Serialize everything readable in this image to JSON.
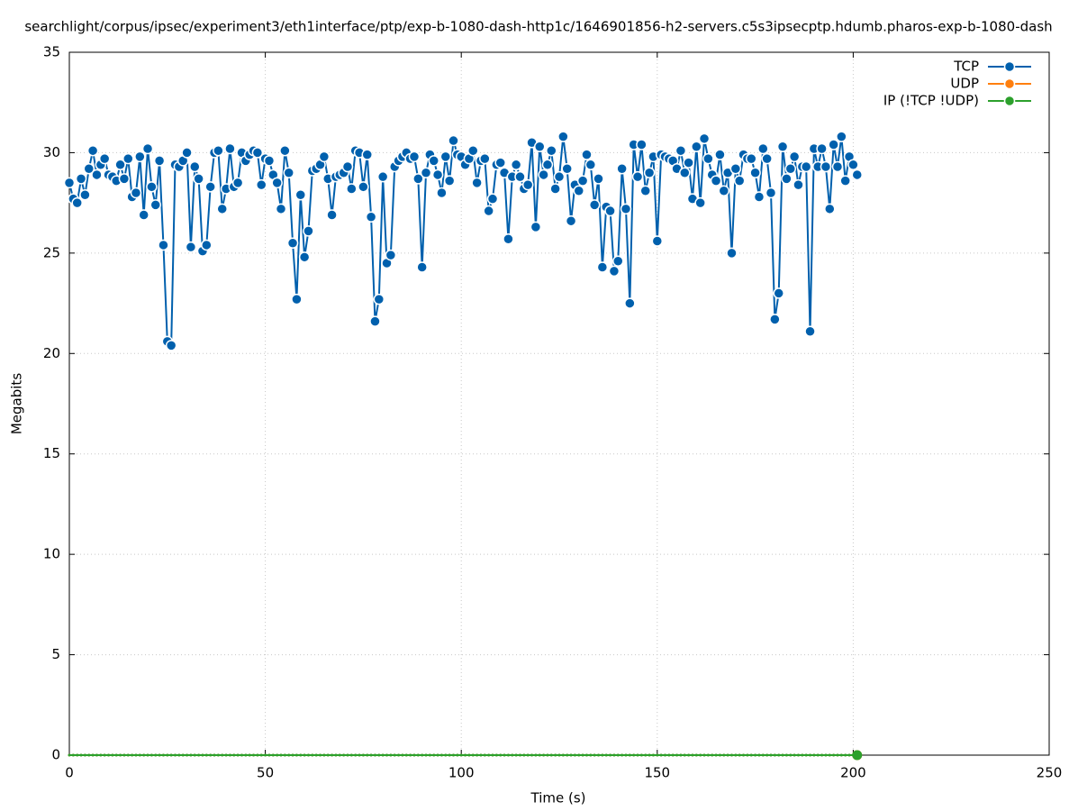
{
  "chart_data": {
    "type": "line",
    "title": "searchlight/corpus/ipsec/experiment3/eth1interface/ptp/exp-b-1080-dash-http1c/1646901856-h2-servers.c5s3ipsecptp.hdumb.pharos-exp-b-1080-dash",
    "x_label": "Time (s)",
    "y_label": "Megabits",
    "xlim": [
      0,
      250
    ],
    "xticks": [
      0,
      50,
      100,
      150,
      200,
      250
    ],
    "ylim": [
      0,
      35
    ],
    "yticks": [
      0,
      5,
      10,
      15,
      20,
      25,
      30,
      35
    ],
    "grid": true,
    "legend": "top-right",
    "x": [
      0,
      1,
      2,
      3,
      4,
      5,
      6,
      7,
      8,
      9,
      10,
      11,
      12,
      13,
      14,
      15,
      16,
      17,
      18,
      19,
      20,
      21,
      22,
      23,
      24,
      25,
      26,
      27,
      28,
      29,
      30,
      31,
      32,
      33,
      34,
      35,
      36,
      37,
      38,
      39,
      40,
      41,
      42,
      43,
      44,
      45,
      46,
      47,
      48,
      49,
      50,
      51,
      52,
      53,
      54,
      55,
      56,
      57,
      58,
      59,
      60,
      61,
      62,
      63,
      64,
      65,
      66,
      67,
      68,
      69,
      70,
      71,
      72,
      73,
      74,
      75,
      76,
      77,
      78,
      79,
      80,
      81,
      82,
      83,
      84,
      85,
      86,
      87,
      88,
      89,
      90,
      91,
      92,
      93,
      94,
      95,
      96,
      97,
      98,
      99,
      100,
      101,
      102,
      103,
      104,
      105,
      106,
      107,
      108,
      109,
      110,
      111,
      112,
      113,
      114,
      115,
      116,
      117,
      118,
      119,
      120,
      121,
      122,
      123,
      124,
      125,
      126,
      127,
      128,
      129,
      130,
      131,
      132,
      133,
      134,
      135,
      136,
      137,
      138,
      139,
      140,
      141,
      142,
      143,
      144,
      145,
      146,
      147,
      148,
      149,
      150,
      151,
      152,
      153,
      154,
      155,
      156,
      157,
      158,
      159,
      160,
      161,
      162,
      163,
      164,
      165,
      166,
      167,
      168,
      169,
      170,
      171,
      172,
      173,
      174,
      175,
      176,
      177,
      178,
      179,
      180,
      181,
      182,
      183,
      184,
      185,
      186,
      187,
      188,
      189,
      190,
      191,
      192,
      193,
      194,
      195,
      196,
      197,
      198,
      199,
      200,
      201
    ],
    "series": [
      {
        "name": "TCP",
        "color": "#0060ad",
        "values": [
          28.5,
          27.7,
          27.5,
          28.7,
          27.9,
          29.2,
          30.1,
          28.9,
          29.4,
          29.7,
          28.9,
          28.8,
          28.6,
          29.4,
          28.7,
          29.7,
          27.8,
          28.0,
          29.8,
          26.9,
          30.2,
          28.3,
          27.4,
          29.6,
          25.4,
          20.6,
          20.4,
          29.4,
          29.3,
          29.6,
          30.0,
          25.3,
          29.3,
          28.7,
          25.1,
          25.4,
          28.3,
          30.0,
          30.1,
          27.2,
          28.2,
          30.2,
          28.3,
          28.5,
          30.0,
          29.6,
          29.9,
          30.1,
          30.0,
          28.4,
          29.7,
          29.6,
          28.9,
          28.5,
          27.2,
          30.1,
          29.0,
          25.5,
          22.7,
          27.9,
          24.8,
          26.1,
          29.1,
          29.2,
          29.4,
          29.8,
          28.7,
          26.9,
          28.8,
          28.9,
          29.0,
          29.3,
          28.2,
          30.1,
          30.0,
          28.3,
          29.9,
          26.8,
          21.6,
          22.7,
          28.8,
          24.5,
          24.9,
          29.3,
          29.6,
          29.8,
          30.0,
          29.7,
          29.8,
          28.7,
          24.3,
          29.0,
          29.9,
          29.6,
          28.9,
          28.0,
          29.8,
          28.6,
          30.6,
          29.9,
          29.8,
          29.4,
          29.7,
          30.1,
          28.5,
          29.6,
          29.7,
          27.1,
          27.7,
          29.4,
          29.5,
          29.0,
          25.7,
          28.8,
          29.4,
          28.8,
          28.2,
          28.4,
          30.5,
          26.3,
          30.3,
          28.9,
          29.4,
          30.1,
          28.2,
          28.8,
          30.8,
          29.2,
          26.6,
          28.4,
          28.1,
          28.6,
          29.9,
          29.4,
          27.4,
          28.7,
          24.3,
          27.3,
          27.1,
          24.1,
          24.6,
          29.2,
          27.2,
          22.5,
          30.4,
          28.8,
          30.4,
          28.1,
          29.0,
          29.8,
          25.6,
          29.9,
          29.8,
          29.7,
          29.6,
          29.2,
          30.1,
          29.0,
          29.5,
          27.7,
          30.3,
          27.5,
          30.7,
          29.7,
          28.9,
          28.6,
          29.9,
          28.1,
          29.0,
          25.0,
          29.2,
          28.6,
          29.9,
          29.7,
          29.7,
          29.0,
          27.8,
          30.2,
          29.7,
          28.0,
          21.7,
          23.0,
          30.3,
          28.7,
          29.2,
          29.8,
          28.4,
          29.3,
          29.3,
          21.1,
          30.2,
          29.3,
          30.2,
          29.3,
          27.2,
          30.4,
          29.3,
          30.8,
          28.6,
          29.8,
          29.4,
          28.9
        ]
      },
      {
        "name": "UDP",
        "color": "#ff7f0e",
        "values": [
          0,
          0,
          0,
          0,
          0,
          0,
          0,
          0,
          0,
          0,
          0,
          0,
          0,
          0,
          0,
          0,
          0,
          0,
          0,
          0,
          0,
          0,
          0,
          0,
          0,
          0,
          0,
          0,
          0,
          0,
          0,
          0,
          0,
          0,
          0,
          0,
          0,
          0,
          0,
          0,
          0,
          0,
          0,
          0,
          0,
          0,
          0,
          0,
          0,
          0,
          0,
          0,
          0,
          0,
          0,
          0,
          0,
          0,
          0,
          0,
          0,
          0,
          0,
          0,
          0,
          0,
          0,
          0,
          0,
          0,
          0,
          0,
          0,
          0,
          0,
          0,
          0,
          0,
          0,
          0,
          0,
          0,
          0,
          0,
          0,
          0,
          0,
          0,
          0,
          0,
          0,
          0,
          0,
          0,
          0,
          0,
          0,
          0,
          0,
          0,
          0,
          0,
          0,
          0,
          0,
          0,
          0,
          0,
          0,
          0,
          0,
          0,
          0,
          0,
          0,
          0,
          0,
          0,
          0,
          0,
          0,
          0,
          0,
          0,
          0,
          0,
          0,
          0,
          0,
          0,
          0,
          0,
          0,
          0,
          0,
          0,
          0,
          0,
          0,
          0,
          0,
          0,
          0,
          0,
          0,
          0,
          0,
          0,
          0,
          0,
          0,
          0,
          0,
          0,
          0,
          0,
          0,
          0,
          0,
          0,
          0,
          0,
          0,
          0,
          0,
          0,
          0,
          0,
          0,
          0,
          0,
          0,
          0,
          0,
          0,
          0,
          0,
          0,
          0,
          0,
          0,
          0,
          0,
          0,
          0,
          0,
          0,
          0,
          0,
          0,
          0,
          0,
          0,
          0,
          0,
          0,
          0,
          0,
          0,
          0,
          0,
          0
        ]
      },
      {
        "name": "IP (!TCP  !UDP)",
        "color": "#2ca02c",
        "values": [
          0,
          0,
          0,
          0,
          0,
          0,
          0,
          0,
          0,
          0,
          0,
          0,
          0,
          0,
          0,
          0,
          0,
          0,
          0,
          0,
          0,
          0,
          0,
          0,
          0,
          0,
          0,
          0,
          0,
          0,
          0,
          0,
          0,
          0,
          0,
          0,
          0,
          0,
          0,
          0,
          0,
          0,
          0,
          0,
          0,
          0,
          0,
          0,
          0,
          0,
          0,
          0,
          0,
          0,
          0,
          0,
          0,
          0,
          0,
          0,
          0,
          0,
          0,
          0,
          0,
          0,
          0,
          0,
          0,
          0,
          0,
          0,
          0,
          0,
          0,
          0,
          0,
          0,
          0,
          0,
          0,
          0,
          0,
          0,
          0,
          0,
          0,
          0,
          0,
          0,
          0,
          0,
          0,
          0,
          0,
          0,
          0,
          0,
          0,
          0,
          0,
          0,
          0,
          0,
          0,
          0,
          0,
          0,
          0,
          0,
          0,
          0,
          0,
          0,
          0,
          0,
          0,
          0,
          0,
          0,
          0,
          0,
          0,
          0,
          0,
          0,
          0,
          0,
          0,
          0,
          0,
          0,
          0,
          0,
          0,
          0,
          0,
          0,
          0,
          0,
          0,
          0,
          0,
          0,
          0,
          0,
          0,
          0,
          0,
          0,
          0,
          0,
          0,
          0,
          0,
          0,
          0,
          0,
          0,
          0,
          0,
          0,
          0,
          0,
          0,
          0,
          0,
          0,
          0,
          0,
          0,
          0,
          0,
          0,
          0,
          0,
          0,
          0,
          0,
          0,
          0,
          0,
          0,
          0,
          0,
          0,
          0,
          0,
          0,
          0,
          0,
          0,
          0,
          0,
          0,
          0,
          0,
          0,
          0,
          0,
          0,
          0
        ]
      }
    ]
  }
}
